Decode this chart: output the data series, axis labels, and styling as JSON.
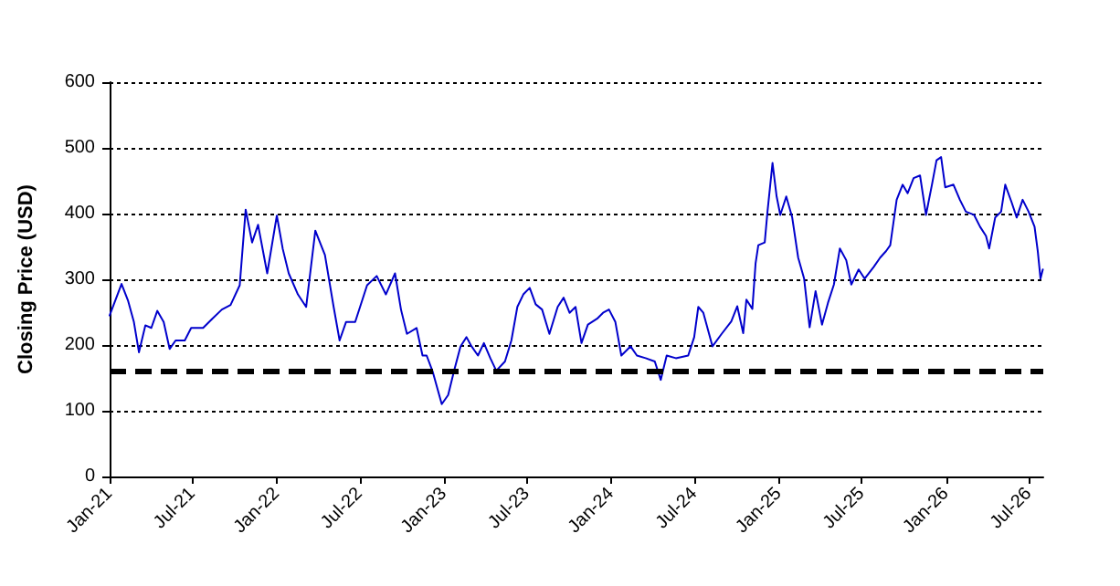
{
  "chart_data": {
    "type": "line",
    "ylabel": "Closing Price (USD)",
    "grid": "y",
    "marker": "none",
    "line_style": "solid",
    "xlim": [
      "2021-01-01",
      "2026-08-01"
    ],
    "ylim": [
      0,
      600
    ],
    "yticks": [
      0,
      100,
      200,
      300,
      400,
      500,
      600
    ],
    "xticks": [
      {
        "value": "2021-01-01",
        "label": "Jan-21"
      },
      {
        "value": "2021-07-01",
        "label": "Jul-21"
      },
      {
        "value": "2022-01-01",
        "label": "Jan-22"
      },
      {
        "value": "2022-07-01",
        "label": "Jul-22"
      },
      {
        "value": "2023-01-01",
        "label": "Jan-23"
      },
      {
        "value": "2023-07-01",
        "label": "Jul-23"
      },
      {
        "value": "2024-01-01",
        "label": "Jan-24"
      },
      {
        "value": "2024-07-01",
        "label": "Jul-24"
      },
      {
        "value": "2025-01-01",
        "label": "Jan-25"
      },
      {
        "value": "2025-07-01",
        "label": "Jul-25"
      },
      {
        "value": "2026-01-01",
        "label": "Jan-26"
      },
      {
        "value": "2026-07-01",
        "label": "Jul-26"
      }
    ],
    "ref_lines": [
      {
        "axis": "y",
        "value": 160,
        "label": null,
        "color": "#000000",
        "line_style": "dashed"
      }
    ],
    "series": [
      {
        "color": "#0000cc",
        "x": [
          "2021-01-01",
          "2021-01-27",
          "2021-02-10",
          "2021-02-23",
          "2021-03-06",
          "2021-03-20",
          "2021-04-02",
          "2021-04-15",
          "2021-04-29",
          "2021-05-12",
          "2021-05-25",
          "2021-06-14",
          "2021-06-28",
          "2021-07-24",
          "2021-08-13",
          "2021-09-03",
          "2021-09-22",
          "2021-10-12",
          "2021-10-25",
          "2021-11-08",
          "2021-11-21",
          "2021-12-11",
          "2022-01-01",
          "2022-01-14",
          "2022-01-27",
          "2022-02-16",
          "2022-03-06",
          "2022-03-26",
          "2022-04-16",
          "2022-05-05",
          "2022-05-18",
          "2022-06-01",
          "2022-06-21",
          "2022-07-17",
          "2022-08-07",
          "2022-08-27",
          "2022-09-16",
          "2022-09-29",
          "2022-10-12",
          "2022-11-02",
          "2022-11-15",
          "2022-11-24",
          "2022-12-07",
          "2022-12-27",
          "2023-01-10",
          "2023-01-23",
          "2023-02-06",
          "2023-02-19",
          "2023-03-02",
          "2023-03-16",
          "2023-03-29",
          "2023-04-12",
          "2023-04-25",
          "2023-05-14",
          "2023-05-28",
          "2023-06-10",
          "2023-06-23",
          "2023-07-07",
          "2023-07-20",
          "2023-08-03",
          "2023-08-19",
          "2023-09-06",
          "2023-09-19",
          "2023-10-02",
          "2023-10-15",
          "2023-10-28",
          "2023-11-11",
          "2023-12-01",
          "2023-12-14",
          "2023-12-27",
          "2024-01-10",
          "2024-01-23",
          "2024-02-12",
          "2024-02-26",
          "2024-03-16",
          "2024-04-05",
          "2024-04-18",
          "2024-05-01",
          "2024-05-21",
          "2024-06-17",
          "2024-06-30",
          "2024-07-09",
          "2024-07-20",
          "2024-08-09",
          "2024-08-29",
          "2024-09-19",
          "2024-10-02",
          "2024-10-15",
          "2024-10-22",
          "2024-11-04",
          "2024-11-11",
          "2024-11-17",
          "2024-12-01",
          "2024-12-07",
          "2024-12-18",
          "2024-12-27",
          "2025-01-04",
          "2025-01-17",
          "2025-01-30",
          "2025-02-12",
          "2025-02-25",
          "2025-03-09",
          "2025-03-22",
          "2025-04-05",
          "2025-04-18",
          "2025-05-01",
          "2025-05-14",
          "2025-05-28",
          "2025-06-08",
          "2025-06-24",
          "2025-07-07",
          "2025-07-27",
          "2025-08-10",
          "2025-08-23",
          "2025-09-01",
          "2025-09-15",
          "2025-09-28",
          "2025-10-09",
          "2025-10-22",
          "2025-11-05",
          "2025-11-18",
          "2025-12-01",
          "2025-12-11",
          "2025-12-21",
          "2025-12-30",
          "2026-01-17",
          "2026-01-31",
          "2026-02-13",
          "2026-03-03",
          "2026-03-16",
          "2026-03-29",
          "2026-04-05",
          "2026-04-18",
          "2026-05-01",
          "2026-05-10",
          "2026-05-24",
          "2026-06-04",
          "2026-06-17",
          "2026-06-30",
          "2026-07-13",
          "2026-07-20",
          "2026-07-26",
          "2026-07-31"
        ],
        "values": [
          245,
          293,
          268,
          235,
          189,
          230,
          226,
          252,
          235,
          194,
          207,
          207,
          226,
          226,
          240,
          254,
          261,
          291,
          406,
          356,
          383,
          309,
          397,
          346,
          309,
          277,
          258,
          374,
          337,
          258,
          207,
          235,
          235,
          291,
          305,
          277,
          309,
          254,
          217,
          226,
          184,
          184,
          160,
          110,
          124,
          161,
          198,
          212,
          198,
          184,
          203,
          180,
          161,
          175,
          207,
          258,
          277,
          287,
          262,
          254,
          217,
          258,
          272,
          249,
          258,
          203,
          231,
          240,
          249,
          254,
          235,
          184,
          198,
          184,
          180,
          175,
          147,
          184,
          180,
          184,
          212,
          258,
          249,
          198,
          217,
          236,
          259,
          218,
          269,
          255,
          324,
          352,
          356,
          403,
          477,
          426,
          398,
          426,
          394,
          333,
          301,
          227,
          282,
          231,
          264,
          292,
          347,
          329,
          292,
          315,
          301,
          319,
          333,
          343,
          352,
          421,
          444,
          431,
          454,
          458,
          398,
          444,
          481,
          486,
          440,
          444,
          421,
          403,
          398,
          380,
          366,
          347,
          394,
          403,
          444,
          417,
          394,
          421,
          403,
          380,
          343,
          301,
          315
        ]
      }
    ]
  }
}
